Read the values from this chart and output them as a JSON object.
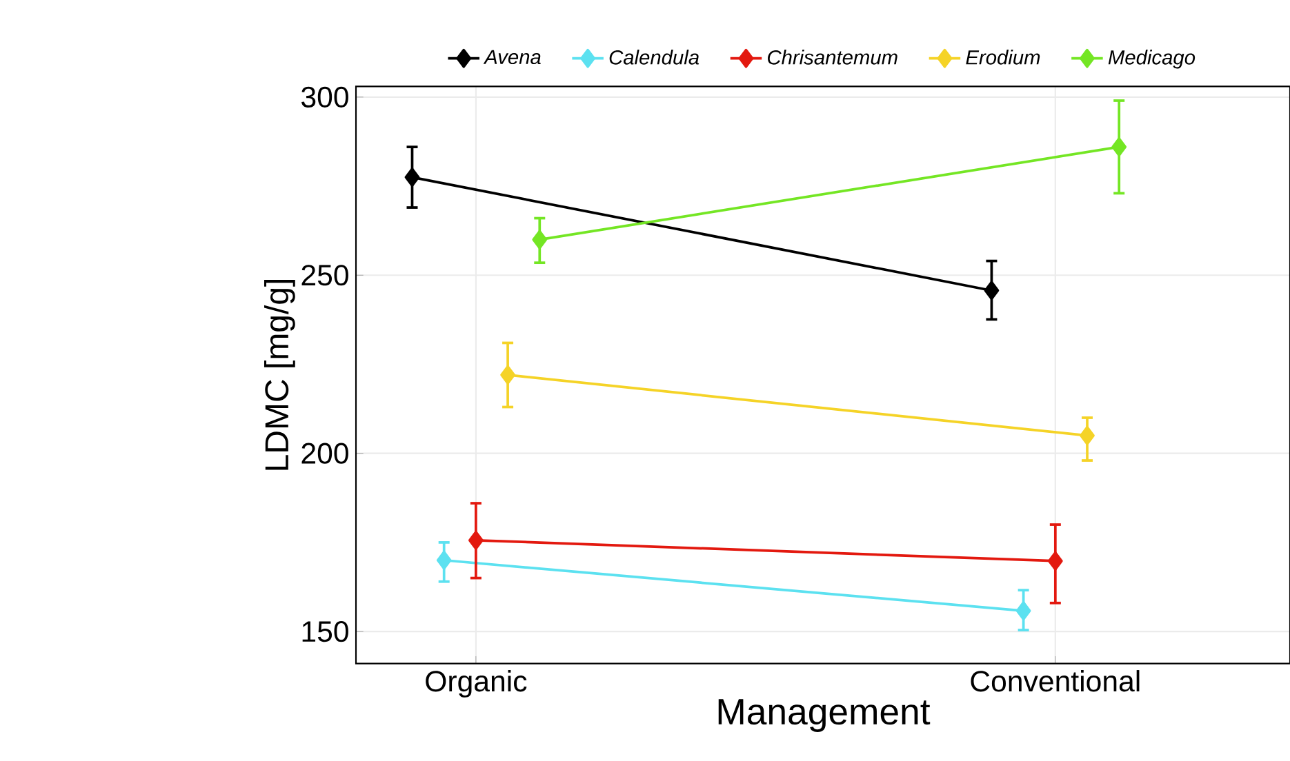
{
  "chart_data": {
    "type": "line",
    "xlabel": "Management",
    "ylabel": "LDMC [mg/g]",
    "categories": [
      "Organic",
      "Conventional"
    ],
    "series": [
      {
        "name": "Avena",
        "color": "#000000",
        "values": [
          277.5,
          245.7
        ],
        "errors": [
          [
            269,
            286
          ],
          [
            237.6,
            254
          ]
        ]
      },
      {
        "name": "Calendula",
        "color": "#5ce1f0",
        "values": [
          170,
          155.8
        ],
        "errors": [
          [
            164,
            175
          ],
          [
            150.4,
            161.6
          ]
        ]
      },
      {
        "name": "Chrisantemum",
        "color": "#e3190f",
        "values": [
          175.6,
          169.8
        ],
        "errors": [
          [
            165,
            186
          ],
          [
            158,
            180
          ]
        ]
      },
      {
        "name": "Erodium",
        "color": "#f5d327",
        "values": [
          222,
          205
        ],
        "errors": [
          [
            213,
            231
          ],
          [
            198,
            210
          ]
        ]
      },
      {
        "name": "Medicago",
        "color": "#74e624",
        "values": [
          260,
          286
        ],
        "errors": [
          [
            253.5,
            266
          ],
          [
            273,
            299
          ]
        ]
      }
    ],
    "ylim": [
      141,
      303
    ],
    "yticks": [
      150,
      200,
      250,
      300
    ],
    "grid": true,
    "legend": "top",
    "marker": "diamond",
    "line_style": "solid"
  }
}
